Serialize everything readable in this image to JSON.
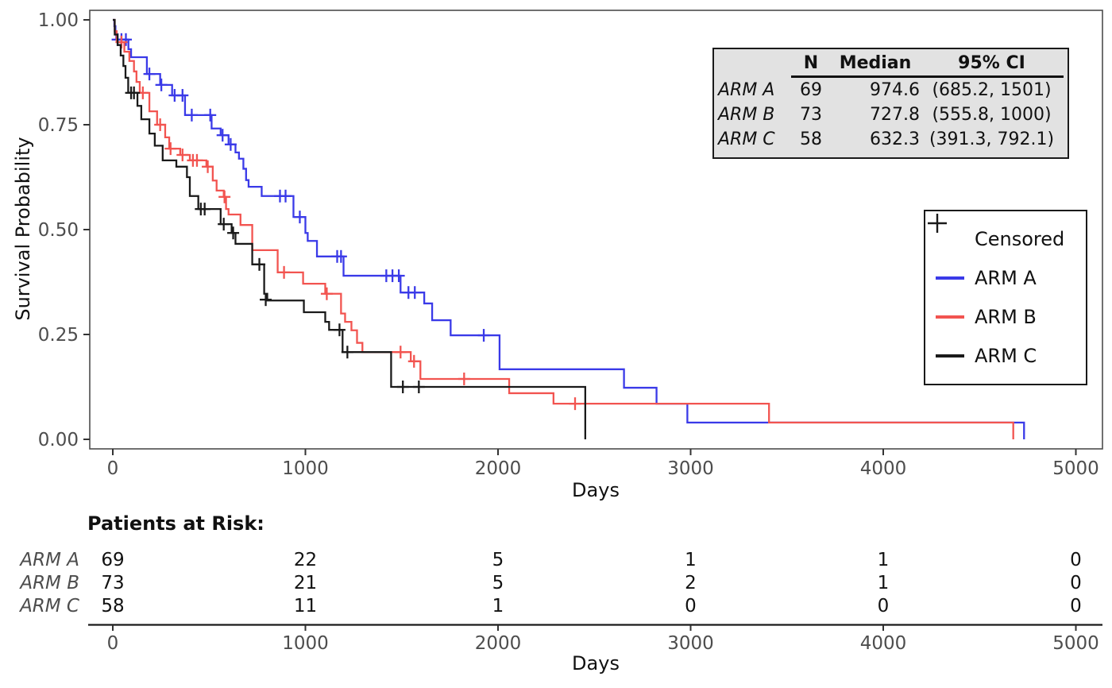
{
  "axes": {
    "x_title": "Days",
    "y_title": "Survival Probability"
  },
  "chart_data": {
    "type": "line",
    "subtype": "kaplan-meier-step",
    "title": "",
    "xlabel": "Days",
    "ylabel": "Survival Probability",
    "xlim": [
      0,
      5000
    ],
    "ylim": [
      0.0,
      1.0
    ],
    "grid": false,
    "legend_position": "right",
    "x_ticks": [
      0,
      1000,
      2000,
      3000,
      4000,
      5000
    ],
    "y_tick_values": [
      0,
      0.25,
      0.5,
      0.75,
      1
    ],
    "y_tick_labels": [
      "0.00",
      "0.25",
      "0.50",
      "0.75",
      "1.00"
    ],
    "series": [
      {
        "name": "ARM A",
        "color": "#3A3AE8",
        "steps": [
          [
            0,
            1.0
          ],
          [
            8,
            0.985
          ],
          [
            14,
            0.965
          ],
          [
            18,
            0.953
          ],
          [
            81,
            0.93
          ],
          [
            95,
            0.911
          ],
          [
            177,
            0.871
          ],
          [
            246,
            0.845
          ],
          [
            308,
            0.82
          ],
          [
            375,
            0.773
          ],
          [
            513,
            0.741
          ],
          [
            560,
            0.725
          ],
          [
            601,
            0.703
          ],
          [
            637,
            0.684
          ],
          [
            655,
            0.669
          ],
          [
            678,
            0.645
          ],
          [
            692,
            0.618
          ],
          [
            705,
            0.602
          ],
          [
            773,
            0.58
          ],
          [
            938,
            0.53
          ],
          [
            1000,
            0.492
          ],
          [
            1012,
            0.473
          ],
          [
            1060,
            0.436
          ],
          [
            1198,
            0.39
          ],
          [
            1494,
            0.35
          ],
          [
            1617,
            0.324
          ],
          [
            1658,
            0.284
          ],
          [
            1754,
            0.248
          ],
          [
            2008,
            0.167
          ],
          [
            2654,
            0.123
          ],
          [
            2823,
            0.085
          ],
          [
            2983,
            0.04
          ],
          [
            4731,
            0.0
          ]
        ],
        "censored": [
          [
            25,
            0.953
          ],
          [
            45,
            0.953
          ],
          [
            68,
            0.953
          ],
          [
            190,
            0.871
          ],
          [
            252,
            0.845
          ],
          [
            321,
            0.82
          ],
          [
            362,
            0.82
          ],
          [
            410,
            0.773
          ],
          [
            506,
            0.773
          ],
          [
            570,
            0.725
          ],
          [
            612,
            0.703
          ],
          [
            868,
            0.58
          ],
          [
            897,
            0.58
          ],
          [
            971,
            0.53
          ],
          [
            1165,
            0.436
          ],
          [
            1185,
            0.436
          ],
          [
            1420,
            0.39
          ],
          [
            1452,
            0.39
          ],
          [
            1485,
            0.39
          ],
          [
            1535,
            0.35
          ],
          [
            1568,
            0.35
          ],
          [
            1926,
            0.248
          ]
        ]
      },
      {
        "name": "ARM B",
        "color": "#F25450",
        "steps": [
          [
            0,
            1.0
          ],
          [
            10,
            0.973
          ],
          [
            20,
            0.947
          ],
          [
            60,
            0.924
          ],
          [
            86,
            0.902
          ],
          [
            110,
            0.877
          ],
          [
            123,
            0.852
          ],
          [
            140,
            0.826
          ],
          [
            190,
            0.782
          ],
          [
            230,
            0.75
          ],
          [
            272,
            0.72
          ],
          [
            293,
            0.693
          ],
          [
            350,
            0.678
          ],
          [
            400,
            0.665
          ],
          [
            486,
            0.65
          ],
          [
            519,
            0.617
          ],
          [
            539,
            0.593
          ],
          [
            576,
            0.578
          ],
          [
            588,
            0.549
          ],
          [
            601,
            0.536
          ],
          [
            663,
            0.511
          ],
          [
            724,
            0.451
          ],
          [
            856,
            0.398
          ],
          [
            988,
            0.371
          ],
          [
            1103,
            0.347
          ],
          [
            1185,
            0.3
          ],
          [
            1206,
            0.28
          ],
          [
            1239,
            0.26
          ],
          [
            1268,
            0.23
          ],
          [
            1296,
            0.208
          ],
          [
            1547,
            0.186
          ],
          [
            1597,
            0.144
          ],
          [
            2058,
            0.11
          ],
          [
            2288,
            0.085
          ],
          [
            3407,
            0.04
          ],
          [
            4675,
            0.0
          ]
        ],
        "censored": [
          [
            45,
            0.947
          ],
          [
            156,
            0.826
          ],
          [
            246,
            0.75
          ],
          [
            300,
            0.693
          ],
          [
            362,
            0.678
          ],
          [
            416,
            0.665
          ],
          [
            437,
            0.665
          ],
          [
            493,
            0.65
          ],
          [
            580,
            0.578
          ],
          [
            889,
            0.398
          ],
          [
            1111,
            0.347
          ],
          [
            1494,
            0.208
          ],
          [
            1564,
            0.186
          ],
          [
            1824,
            0.144
          ],
          [
            2400,
            0.085
          ]
        ]
      },
      {
        "name": "ARM C",
        "color": "#1A1A1A",
        "steps": [
          [
            0,
            1.0
          ],
          [
            10,
            0.965
          ],
          [
            25,
            0.94
          ],
          [
            41,
            0.915
          ],
          [
            55,
            0.89
          ],
          [
            66,
            0.862
          ],
          [
            80,
            0.826
          ],
          [
            128,
            0.795
          ],
          [
            148,
            0.763
          ],
          [
            190,
            0.729
          ],
          [
            218,
            0.7
          ],
          [
            259,
            0.665
          ],
          [
            330,
            0.65
          ],
          [
            385,
            0.625
          ],
          [
            400,
            0.58
          ],
          [
            444,
            0.549
          ],
          [
            560,
            0.513
          ],
          [
            617,
            0.492
          ],
          [
            637,
            0.466
          ],
          [
            724,
            0.417
          ],
          [
            786,
            0.347
          ],
          [
            802,
            0.331
          ],
          [
            992,
            0.303
          ],
          [
            1103,
            0.28
          ],
          [
            1123,
            0.261
          ],
          [
            1193,
            0.208
          ],
          [
            1445,
            0.125
          ],
          [
            2453,
            0.0
          ]
        ],
        "censored": [
          [
            95,
            0.826
          ],
          [
            110,
            0.826
          ],
          [
            457,
            0.549
          ],
          [
            477,
            0.549
          ],
          [
            576,
            0.513
          ],
          [
            625,
            0.492
          ],
          [
            761,
            0.417
          ],
          [
            794,
            0.333
          ],
          [
            1177,
            0.261
          ],
          [
            1218,
            0.208
          ],
          [
            1506,
            0.125
          ],
          [
            1589,
            0.125
          ]
        ]
      }
    ],
    "risk_table": {
      "title": "Patients at Risk:",
      "xlabel": "Days",
      "time_points": [
        0,
        1000,
        2000,
        3000,
        4000,
        5000
      ],
      "rows": [
        {
          "name": "ARM A",
          "counts": [
            69,
            22,
            5,
            1,
            1,
            0
          ]
        },
        {
          "name": "ARM B",
          "counts": [
            73,
            21,
            5,
            2,
            1,
            0
          ]
        },
        {
          "name": "ARM C",
          "counts": [
            58,
            11,
            1,
            0,
            0,
            0
          ]
        }
      ]
    }
  },
  "stats_table": {
    "headers": {
      "n": "N",
      "median": "Median",
      "ci": "95% CI"
    },
    "rows": [
      {
        "arm": "ARM A",
        "n": "69",
        "median": "974.6",
        "ci": "(685.2, 1501)"
      },
      {
        "arm": "ARM B",
        "n": "73",
        "median": "727.8",
        "ci": "(555.8, 1000)"
      },
      {
        "arm": "ARM C",
        "n": "58",
        "median": "632.3",
        "ci": "(391.3, 792.1)"
      }
    ]
  },
  "legend": {
    "censored_label": "Censored",
    "items": [
      {
        "label": "ARM A",
        "color": "#3A3AE8"
      },
      {
        "label": "ARM B",
        "color": "#F25450"
      },
      {
        "label": "ARM C",
        "color": "#1A1A1A"
      }
    ]
  }
}
